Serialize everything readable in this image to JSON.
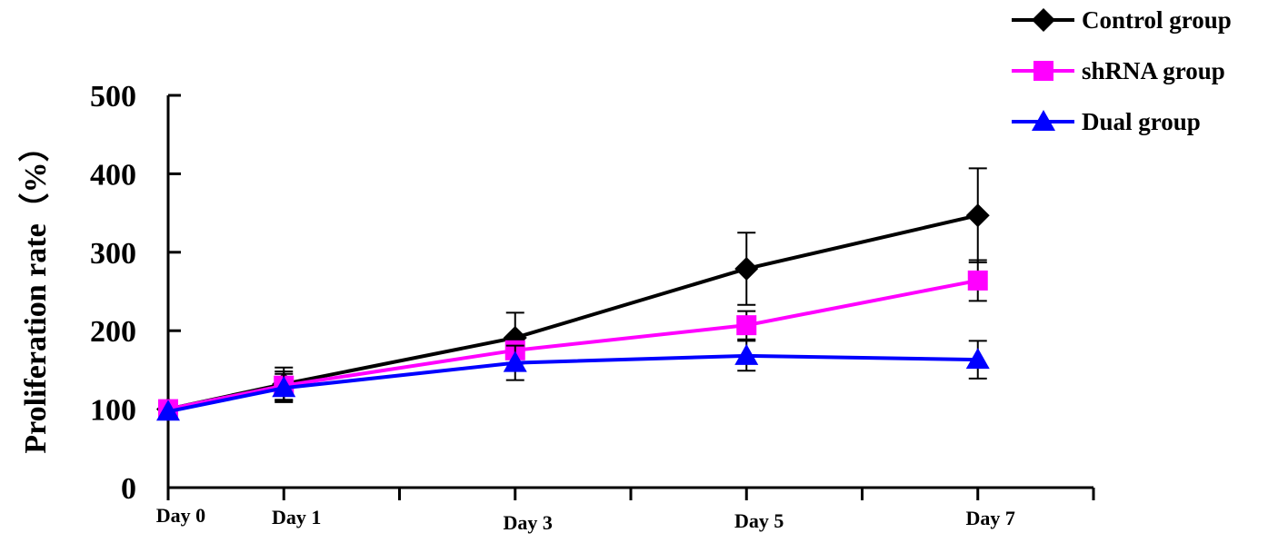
{
  "chart_data": {
    "type": "line",
    "title": "",
    "xlabel": "",
    "ylabel": "Proliferation rate（%）",
    "x": [
      0,
      1,
      3,
      5,
      7
    ],
    "categories": [
      "Day 0",
      "Day 1",
      "Day 3",
      "Day 5",
      "Day 7"
    ],
    "xlim": [
      0,
      8
    ],
    "ylim": [
      0,
      500
    ],
    "yticks": [
      0,
      100,
      200,
      300,
      400,
      500
    ],
    "ytick_labels": [
      "0",
      "100",
      "200",
      "300",
      "400",
      "500"
    ],
    "grid": false,
    "legend_position": "top-right",
    "series": [
      {
        "name": "Control group",
        "color": "#000000",
        "marker": "diamond",
        "values": [
          100,
          132,
          191,
          279,
          347
        ],
        "errors": [
          0,
          21,
          32,
          46,
          60
        ]
      },
      {
        "name": "shRNA group",
        "color": "#ff00ff",
        "marker": "square",
        "values": [
          100,
          130,
          175,
          207,
          264
        ],
        "errors": [
          0,
          18,
          17,
          18,
          26
        ]
      },
      {
        "name": "Dual group",
        "color": "#0000ff",
        "marker": "triangle",
        "values": [
          97,
          127,
          159,
          168,
          163
        ],
        "errors": [
          0,
          18,
          22,
          19,
          24
        ]
      }
    ]
  }
}
